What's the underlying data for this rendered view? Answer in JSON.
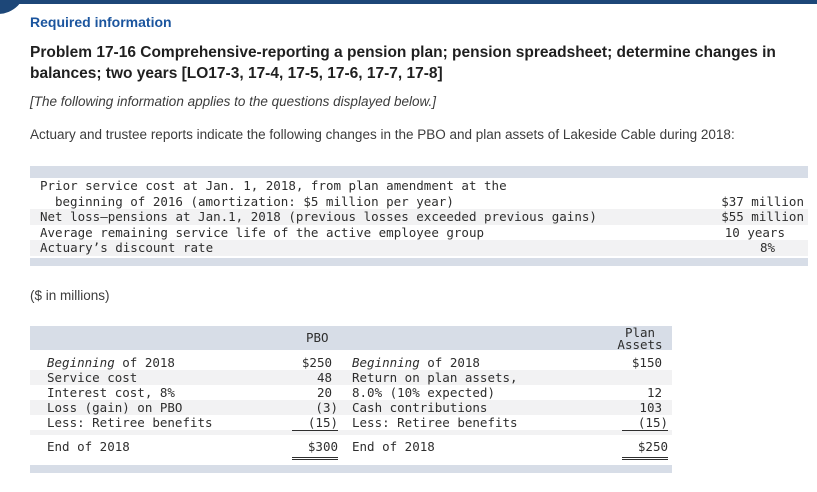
{
  "page": {
    "required_label": "Required information",
    "problem_title": "Problem 17-16 Comprehensive-reporting a pension plan; pension spreadsheet; determine changes in balances; two years [LO17-3, 17-4, 17-5, 17-6, 17-7, 17-8]",
    "info_note": "[The following information applies to the questions displayed below.]",
    "intro_paragraph": "Actuary and trustee reports indicate the following changes in the PBO and plan assets of Lakeside Cable during 2018:",
    "millions_note": "($ in millions)"
  },
  "colors": {
    "navy": "#1d4778",
    "heading_blue": "#1b559e",
    "table_band": "#d7dde7",
    "row_stripe": "#f2f2f3"
  },
  "facts_table": {
    "rows": [
      {
        "label": "Prior service cost at Jan. 1, 2018, from plan amendment at the",
        "value": ""
      },
      {
        "label": "beginning of 2016 (amortization: $5 million per year)",
        "value": "$37 million"
      },
      {
        "label": "Net loss–pensions at Jan.1, 2018 (previous losses exceeded previous gains)",
        "value": "$55 million"
      },
      {
        "label": "Average remaining service life of the active employee group",
        "value": "10 years"
      },
      {
        "label": "Actuary’s discount rate",
        "value": "8%"
      }
    ]
  },
  "pension_table": {
    "pbo_header": "PBO",
    "plan_assets_header_line1": "Plan",
    "plan_assets_header_line2": "Assets",
    "pbo": {
      "rows": [
        {
          "label_italic": "Beginning",
          "label_rest": " of 2018",
          "value": "$250"
        },
        {
          "label": "Service cost",
          "value": "48"
        },
        {
          "label": "Interest cost, 8%",
          "value": "20"
        },
        {
          "label": "Loss (gain) on PBO",
          "value": "(3)"
        },
        {
          "label": "Less: Retiree benefits",
          "value": "(15)"
        }
      ],
      "total_label": "End of 2018",
      "total_value": "$300"
    },
    "assets": {
      "rows": [
        {
          "label_italic": "Beginning",
          "label_rest": " of 2018",
          "value": "$150"
        },
        {
          "label": "Return on plan assets,",
          "value": ""
        },
        {
          "label": "8.0% (10% expected)",
          "value": "12"
        },
        {
          "label": "Cash contributions",
          "value": "103"
        },
        {
          "label": "Less: Retiree benefits",
          "value": "(15)"
        }
      ],
      "total_label": "End of 2018",
      "total_value": "$250"
    }
  }
}
